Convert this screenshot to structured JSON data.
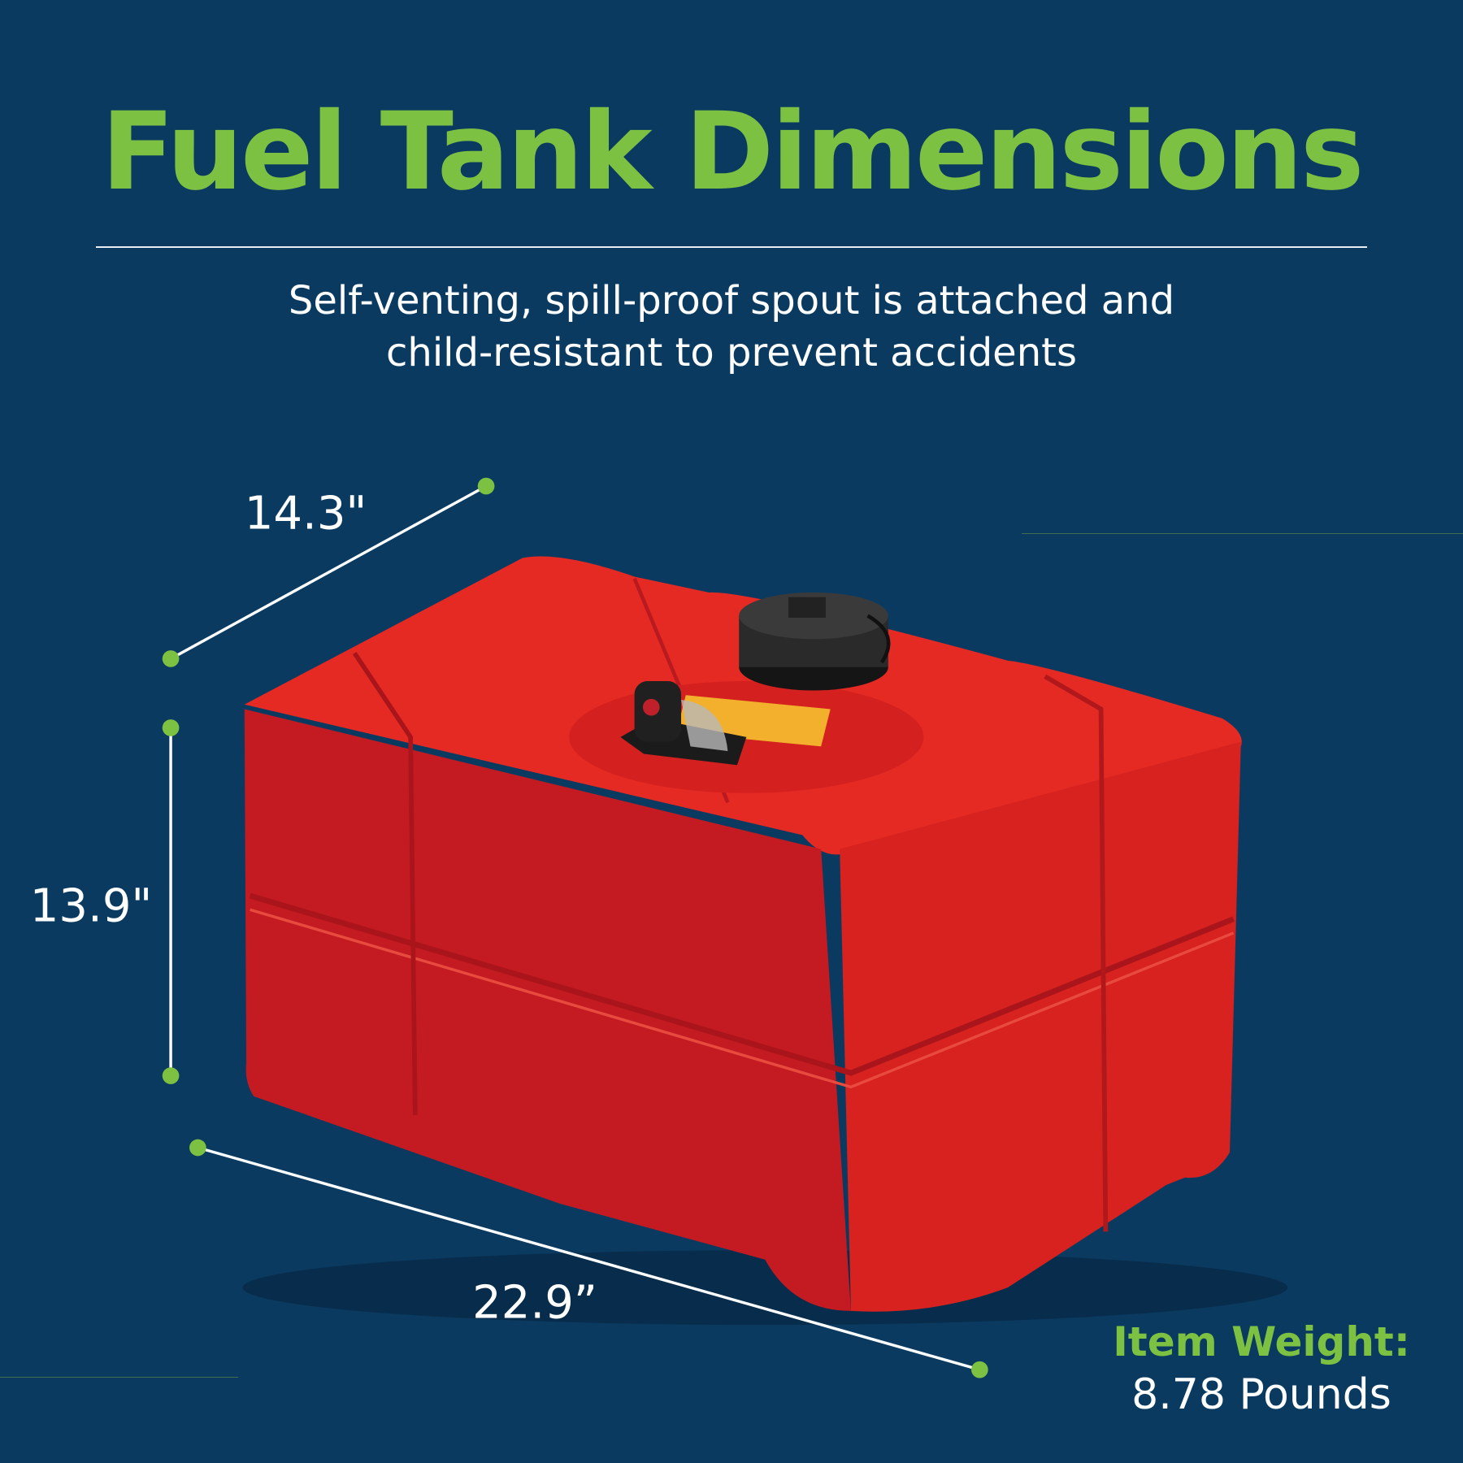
{
  "header": {
    "title": "Fuel Tank Dimensions",
    "subtitle_line1": "Self-venting, spill-proof spout is attached and",
    "subtitle_line2": "child-resistant to prevent accidents"
  },
  "dimensions": {
    "depth": "14.3\"",
    "height": "13.9\"",
    "length": "22.9”"
  },
  "weight": {
    "label": "Item Weight:",
    "value": "8.78 Pounds"
  },
  "colors": {
    "background": "#0b3a61",
    "accent_green": "#7dc142",
    "tank_red": "#d8221f"
  }
}
